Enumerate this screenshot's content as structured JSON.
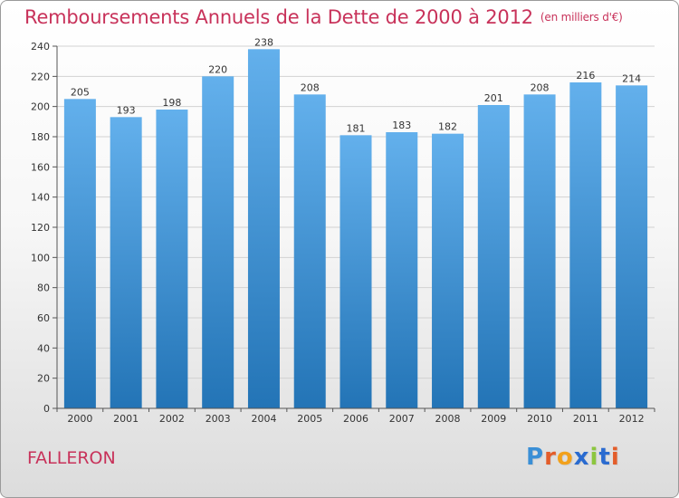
{
  "title": {
    "main": "Remboursements Annuels de la Dette de 2000 à 2012",
    "unit": "(en milliers d'€)"
  },
  "commune": "FALLERON",
  "logo": {
    "text": "Proxiti",
    "letters": [
      "P",
      "r",
      "o",
      "x",
      "i",
      "t",
      "i"
    ],
    "letter_colors": [
      "#3a8fd6",
      "#e35d2a",
      "#f2a11c",
      "#2a6bd0",
      "#8cc63f",
      "#2a6bd0",
      "#e35d2a"
    ]
  },
  "colors": {
    "title": "#c8325a",
    "bar_top": "#63b0ec",
    "bar_bottom": "#2374b6",
    "grid": "#d2d2d2",
    "axis": "#555555"
  },
  "chart_data": {
    "type": "bar",
    "categories": [
      "2000",
      "2001",
      "2002",
      "2003",
      "2004",
      "2005",
      "2006",
      "2007",
      "2008",
      "2009",
      "2010",
      "2011",
      "2012"
    ],
    "values": [
      205,
      193,
      198,
      220,
      238,
      208,
      181,
      183,
      182,
      201,
      208,
      216,
      214
    ],
    "data_labels": [
      "205",
      "193",
      "198",
      "220",
      "238",
      "208",
      "181",
      "183",
      "182",
      "201",
      "208",
      "216",
      "214"
    ],
    "yticks": [
      "0",
      "20",
      "40",
      "60",
      "80",
      "100",
      "120",
      "140",
      "160",
      "180",
      "200",
      "220",
      "240"
    ],
    "ylim": [
      0,
      240
    ],
    "grid": true,
    "legend": "none"
  }
}
